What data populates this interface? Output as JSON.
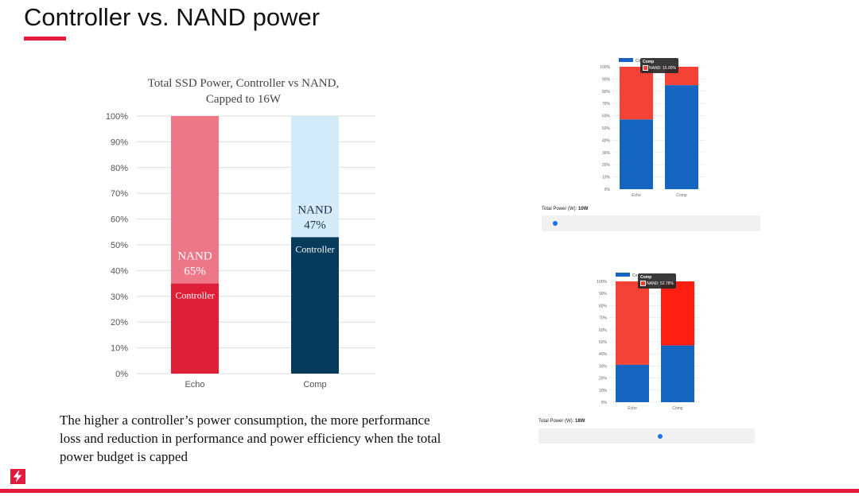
{
  "slide": {
    "title": "Controller vs. NAND power",
    "caption": "The higher a controller’s power consumption, the more performance loss and reduction in performance and power efficiency when the total power budget is capped"
  },
  "colors": {
    "brand_red": "#e31c3d",
    "echo_controller": "#de1f37",
    "echo_nand": "#ed7787",
    "comp_controller": "#073b5c",
    "comp_nand": "#d4ebfa",
    "mini_blue": "#1565c0",
    "mini_red": "#f44336",
    "mini_red_bright": "#ff1f12"
  },
  "chart_data": [
    {
      "type": "bar",
      "stacked": true,
      "title": "Total SSD Power, Controller vs NAND, Capped to 16W",
      "categories": [
        "Echo",
        "Comp"
      ],
      "series": [
        {
          "name": "Controller",
          "values": [
            35,
            53
          ]
        },
        {
          "name": "NAND",
          "values": [
            65,
            47
          ]
        }
      ],
      "segment_labels": {
        "controller": [
          "Controller",
          "Controller"
        ],
        "nand": [
          "NAND 65%",
          "NAND 47%"
        ]
      },
      "yticks": [
        "0%",
        "10%",
        "20%",
        "30%",
        "40%",
        "50%",
        "60%",
        "70%",
        "80%",
        "90%",
        "100%"
      ],
      "ylim": [
        0,
        100
      ],
      "grid": true
    },
    {
      "type": "bar",
      "stacked": true,
      "categories": [
        "Echo",
        "Comp"
      ],
      "series": [
        {
          "values": [
            57,
            85
          ]
        },
        {
          "values": [
            43,
            15
          ]
        }
      ],
      "yticks": [
        "0%",
        "10%",
        "20%",
        "30%",
        "40%",
        "50%",
        "60%",
        "70%",
        "80%",
        "90%",
        "100%"
      ],
      "ylim": [
        0,
        100
      ],
      "grid": true,
      "tooltip": {
        "title": "Comp",
        "text": "NAND: 15.00%"
      },
      "legend_partial": [
        "Co",
        "D"
      ],
      "power_label": "Total Power (W):",
      "power_value": "10W",
      "slider_fraction": 0.03
    },
    {
      "type": "bar",
      "stacked": true,
      "categories": [
        "Echo",
        "Comp"
      ],
      "series": [
        {
          "values": [
            31,
            47
          ]
        },
        {
          "values": [
            69,
            53
          ]
        }
      ],
      "yticks": [
        "0%",
        "10%",
        "20%",
        "30%",
        "40%",
        "50%",
        "60%",
        "70%",
        "80%",
        "90%",
        "100%"
      ],
      "ylim": [
        0,
        100
      ],
      "grid": true,
      "tooltip": {
        "title": "Comp",
        "text": "NAND: 52.78%"
      },
      "legend_partial": [
        "Co",
        "D"
      ],
      "power_label": "Total Power (W):",
      "power_value": "18W",
      "slider_fraction": 0.53
    }
  ]
}
